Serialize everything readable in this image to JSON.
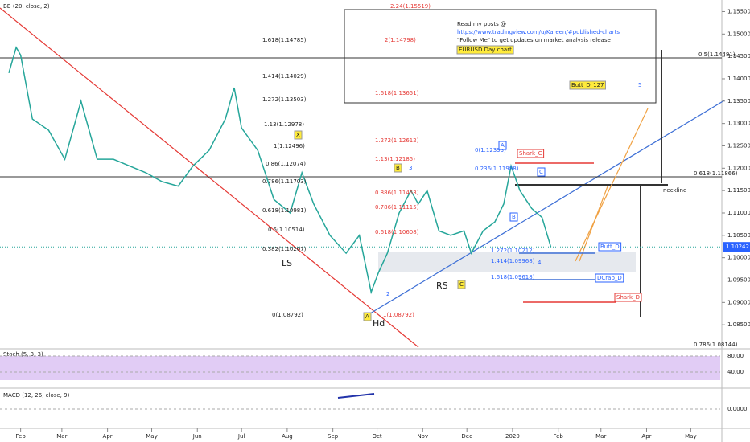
{
  "chart_data": {
    "type": "line",
    "indicator_labels": [
      "BB (20, close, 2)",
      "Stoch (5, 3, 3)",
      "MACD (12, 26, close, 9)"
    ],
    "x": [
      -8,
      -3,
      0,
      8,
      19,
      30,
      41,
      52,
      63,
      74,
      85,
      96,
      107,
      117,
      128,
      139,
      145,
      150,
      161,
      172,
      183,
      191,
      199,
      210,
      221,
      230,
      238,
      243,
      249,
      257,
      265,
      270,
      276,
      284,
      292,
      301,
      306,
      314,
      322,
      328,
      333,
      339,
      347,
      354,
      360
    ],
    "series": [
      {
        "color": "#26a69a",
        "values": [
          1.1413,
          1.147,
          1.1453,
          1.131,
          1.1285,
          1.122,
          1.135,
          1.122,
          1.122,
          1.1205,
          1.119,
          1.117,
          1.116,
          1.1205,
          1.124,
          1.131,
          1.138,
          1.129,
          1.124,
          1.113,
          1.11,
          1.119,
          1.112,
          1.105,
          1.101,
          1.105,
          1.0923,
          1.0967,
          1.101,
          1.11,
          1.115,
          1.112,
          1.115,
          1.106,
          1.105,
          1.106,
          1.101,
          1.106,
          1.108,
          1.112,
          1.1205,
          1.115,
          1.111,
          1.109,
          1.1024
        ]
      }
    ],
    "last_price": 1.10242,
    "xlim": [
      -14,
      475
    ],
    "xticks": [
      {
        "value": 0,
        "label": "Feb"
      },
      {
        "value": 28,
        "label": "Mar"
      },
      {
        "value": 59,
        "label": "Apr"
      },
      {
        "value": 89,
        "label": "May"
      },
      {
        "value": 120,
        "label": "Jun"
      },
      {
        "value": 150,
        "label": "Jul"
      },
      {
        "value": 181,
        "label": "Aug"
      },
      {
        "value": 212,
        "label": "Sep"
      },
      {
        "value": 242,
        "label": "Oct"
      },
      {
        "value": 273,
        "label": "Nov"
      },
      {
        "value": 303,
        "label": "Dec"
      },
      {
        "value": 334,
        "label": "2020"
      },
      {
        "value": 365,
        "label": "Feb"
      },
      {
        "value": 394,
        "label": "Mar"
      },
      {
        "value": 425,
        "label": "Apr"
      },
      {
        "value": 455,
        "label": "May"
      }
    ],
    "ylim": [
      1.08,
      1.1576
    ],
    "yticks": [
      {
        "value": 1.155,
        "label": "1.15500"
      },
      {
        "value": 1.15,
        "label": "1.15000"
      },
      {
        "value": 1.145,
        "label": "1.14500"
      },
      {
        "value": 1.14,
        "label": "1.14000"
      },
      {
        "value": 1.135,
        "label": "1.13500"
      },
      {
        "value": 1.13,
        "label": "1.13000"
      },
      {
        "value": 1.125,
        "label": "1.12500"
      },
      {
        "value": 1.12,
        "label": "1.12000"
      },
      {
        "value": 1.115,
        "label": "1.11500"
      },
      {
        "value": 1.11,
        "label": "1.11000"
      },
      {
        "value": 1.105,
        "label": "1.10500"
      },
      {
        "value": 1.1,
        "label": "1.10000"
      },
      {
        "value": 1.095,
        "label": "1.09500"
      },
      {
        "value": 1.09,
        "label": "1.09000"
      },
      {
        "value": 1.085,
        "label": "1.08500"
      }
    ],
    "stoch_ticks": [
      {
        "value": 80,
        "label": "80.00"
      },
      {
        "value": 40,
        "label": "40.00"
      }
    ],
    "macd_ticks": [
      {
        "value": 0,
        "label": "0.0000"
      }
    ],
    "annotations": [
      "2.24(1.15519)",
      "Read my posts @",
      "https://www.tradingview.com/u/Kareen/#published-charts",
      "\"Follow Me\" to get updates on market analysis release",
      "EURUSD Day chart",
      "1.618(1.14785)",
      "2(1.14798)",
      "0.5(1.14481)",
      "1.414(1.14029)",
      "Butt_D_127",
      "5",
      "1.272(1.13503)",
      "1.618(1.13651)",
      "1.13(1.12978)",
      "1.272(1.12612)",
      "X",
      "1(1.12496)",
      "0(1.12393)",
      "A",
      "Shark_C",
      "1.13(1.12185)",
      "B",
      "3",
      "0.86(1.12074)",
      "0.236(1.11988)",
      "C",
      "0.618(1.11866)",
      "0.786(1.11703)",
      "0.886(1.11453)",
      "neckline",
      "0.618(1.10981)",
      "0.786(1.11115)",
      "0.5(1.10514)",
      "0.618(1.10608)",
      "B",
      "0.382(1.10207)",
      "Butt_D",
      "1.272(1.10212)",
      "LS",
      "1.414(1.09968)",
      "4",
      "1.618(1.09618)",
      "DCrab_D",
      "RS",
      "C",
      "2",
      "Shark_D",
      "0(1.08792)",
      "A",
      "1(1.08792)",
      "Hd",
      "0.786(1.08144)"
    ]
  }
}
